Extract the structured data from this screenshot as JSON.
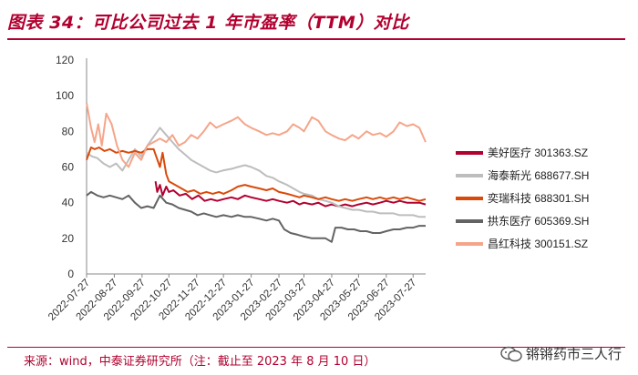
{
  "header": {
    "title": "图表 34：可比公司过去 1 年市盈率（TTM）对比"
  },
  "footer": {
    "source": "来源：wind，中泰证券研究所（注：截止至 2023 年 8 月 10 日）",
    "watermark": "锵锵药市三人行"
  },
  "colors": {
    "accent": "#b2002f"
  },
  "chart_data": {
    "type": "line",
    "title": "",
    "xlabel": "",
    "ylabel": "",
    "ylim": [
      0,
      120
    ],
    "yticks": [
      0,
      20,
      40,
      60,
      80,
      100,
      120
    ],
    "xticks": [
      "2022-07-27",
      "2022-08-27",
      "2022-09-27",
      "2022-10-27",
      "2022-11-27",
      "2022-12-27",
      "2023-01-27",
      "2023-02-27",
      "2023-03-27",
      "2023-04-27",
      "2023-05-27",
      "2023-06-27",
      "2023-07-27"
    ],
    "x_start": "2022-07-27",
    "x_end": "2023-08-10",
    "grid": false,
    "legend_position": "right",
    "series": [
      {
        "name": "美好医疗 301363.SZ",
        "color": "#b2002f",
        "points": [
          [
            "2022-10-12",
            52
          ],
          [
            "2022-10-14",
            46
          ],
          [
            "2022-10-17",
            50
          ],
          [
            "2022-10-20",
            44
          ],
          [
            "2022-10-24",
            49
          ],
          [
            "2022-10-27",
            46
          ],
          [
            "2022-11-01",
            47
          ],
          [
            "2022-11-08",
            44
          ],
          [
            "2022-11-15",
            45
          ],
          [
            "2022-11-22",
            42
          ],
          [
            "2022-11-29",
            44
          ],
          [
            "2022-12-06",
            41
          ],
          [
            "2022-12-13",
            42
          ],
          [
            "2022-12-20",
            41
          ],
          [
            "2022-12-27",
            42
          ],
          [
            "2023-01-05",
            43
          ],
          [
            "2023-01-12",
            42
          ],
          [
            "2023-01-20",
            44
          ],
          [
            "2023-01-27",
            43
          ],
          [
            "2023-02-05",
            42
          ],
          [
            "2023-02-13",
            41
          ],
          [
            "2023-02-20",
            42
          ],
          [
            "2023-02-27",
            41
          ],
          [
            "2023-03-08",
            40
          ],
          [
            "2023-03-15",
            41
          ],
          [
            "2023-03-22",
            39
          ],
          [
            "2023-03-27",
            40
          ],
          [
            "2023-04-05",
            39
          ],
          [
            "2023-04-12",
            40
          ],
          [
            "2023-04-20",
            38
          ],
          [
            "2023-04-27",
            39
          ],
          [
            "2023-05-05",
            38
          ],
          [
            "2023-05-12",
            39
          ],
          [
            "2023-05-20",
            38
          ],
          [
            "2023-05-27",
            39
          ],
          [
            "2023-06-05",
            40
          ],
          [
            "2023-06-12",
            39
          ],
          [
            "2023-06-20",
            40
          ],
          [
            "2023-06-27",
            41
          ],
          [
            "2023-07-05",
            40
          ],
          [
            "2023-07-12",
            41
          ],
          [
            "2023-07-20",
            40
          ],
          [
            "2023-07-27",
            40
          ],
          [
            "2023-08-03",
            40
          ],
          [
            "2023-08-10",
            39
          ]
        ]
      },
      {
        "name": "海泰新光 688677.SH",
        "color": "#bdbdbd",
        "points": [
          [
            "2022-07-27",
            68
          ],
          [
            "2022-08-02",
            66
          ],
          [
            "2022-08-08",
            65
          ],
          [
            "2022-08-15",
            62
          ],
          [
            "2022-08-22",
            60
          ],
          [
            "2022-08-29",
            62
          ],
          [
            "2022-09-05",
            58
          ],
          [
            "2022-09-12",
            64
          ],
          [
            "2022-09-19",
            70
          ],
          [
            "2022-09-26",
            66
          ],
          [
            "2022-10-03",
            72
          ],
          [
            "2022-10-10",
            77
          ],
          [
            "2022-10-17",
            82
          ],
          [
            "2022-10-24",
            78
          ],
          [
            "2022-10-31",
            74
          ],
          [
            "2022-11-07",
            70
          ],
          [
            "2022-11-14",
            67
          ],
          [
            "2022-11-21",
            64
          ],
          [
            "2022-11-28",
            62
          ],
          [
            "2022-12-05",
            60
          ],
          [
            "2022-12-12",
            58
          ],
          [
            "2022-12-19",
            57
          ],
          [
            "2022-12-26",
            58
          ],
          [
            "2023-01-05",
            59
          ],
          [
            "2023-01-12",
            60
          ],
          [
            "2023-01-20",
            61
          ],
          [
            "2023-01-27",
            60
          ],
          [
            "2023-02-05",
            58
          ],
          [
            "2023-02-13",
            55
          ],
          [
            "2023-02-20",
            54
          ],
          [
            "2023-02-27",
            52
          ],
          [
            "2023-03-08",
            50
          ],
          [
            "2023-03-15",
            48
          ],
          [
            "2023-03-22",
            46
          ],
          [
            "2023-03-27",
            45
          ],
          [
            "2023-04-05",
            44
          ],
          [
            "2023-04-12",
            42
          ],
          [
            "2023-04-20",
            41
          ],
          [
            "2023-04-27",
            40
          ],
          [
            "2023-05-05",
            38
          ],
          [
            "2023-05-12",
            37
          ],
          [
            "2023-05-20",
            36
          ],
          [
            "2023-05-27",
            36
          ],
          [
            "2023-06-05",
            35
          ],
          [
            "2023-06-12",
            35
          ],
          [
            "2023-06-20",
            34
          ],
          [
            "2023-06-27",
            34
          ],
          [
            "2023-07-05",
            34
          ],
          [
            "2023-07-12",
            33
          ],
          [
            "2023-07-20",
            33
          ],
          [
            "2023-07-27",
            33
          ],
          [
            "2023-08-03",
            32
          ],
          [
            "2023-08-10",
            32
          ]
        ]
      },
      {
        "name": "奕瑞科技 688301.SH",
        "color": "#d94a0a",
        "points": [
          [
            "2022-07-27",
            64
          ],
          [
            "2022-08-01",
            71
          ],
          [
            "2022-08-05",
            70
          ],
          [
            "2022-08-10",
            71
          ],
          [
            "2022-08-16",
            69
          ],
          [
            "2022-08-22",
            70
          ],
          [
            "2022-08-29",
            68
          ],
          [
            "2022-09-05",
            69
          ],
          [
            "2022-09-12",
            68
          ],
          [
            "2022-09-19",
            69
          ],
          [
            "2022-09-26",
            68
          ],
          [
            "2022-10-03",
            70
          ],
          [
            "2022-10-10",
            70
          ],
          [
            "2022-10-17",
            60
          ],
          [
            "2022-10-20",
            68
          ],
          [
            "2022-10-24",
            56
          ],
          [
            "2022-10-27",
            52
          ],
          [
            "2022-11-03",
            50
          ],
          [
            "2022-11-10",
            48
          ],
          [
            "2022-11-17",
            46
          ],
          [
            "2022-11-24",
            47
          ],
          [
            "2022-12-01",
            45
          ],
          [
            "2022-12-08",
            46
          ],
          [
            "2022-12-15",
            45
          ],
          [
            "2022-12-22",
            46
          ],
          [
            "2022-12-27",
            45
          ],
          [
            "2023-01-05",
            47
          ],
          [
            "2023-01-12",
            49
          ],
          [
            "2023-01-20",
            50
          ],
          [
            "2023-01-27",
            49
          ],
          [
            "2023-02-05",
            48
          ],
          [
            "2023-02-13",
            47
          ],
          [
            "2023-02-20",
            48
          ],
          [
            "2023-02-27",
            46
          ],
          [
            "2023-03-08",
            45
          ],
          [
            "2023-03-15",
            44
          ],
          [
            "2023-03-22",
            43
          ],
          [
            "2023-03-27",
            44
          ],
          [
            "2023-04-05",
            43
          ],
          [
            "2023-04-12",
            42
          ],
          [
            "2023-04-20",
            43
          ],
          [
            "2023-04-27",
            42
          ],
          [
            "2023-05-05",
            41
          ],
          [
            "2023-05-12",
            42
          ],
          [
            "2023-05-20",
            41
          ],
          [
            "2023-05-27",
            42
          ],
          [
            "2023-06-05",
            43
          ],
          [
            "2023-06-12",
            42
          ],
          [
            "2023-06-20",
            43
          ],
          [
            "2023-06-27",
            42
          ],
          [
            "2023-07-05",
            43
          ],
          [
            "2023-07-12",
            42
          ],
          [
            "2023-07-20",
            43
          ],
          [
            "2023-07-27",
            42
          ],
          [
            "2023-08-03",
            41
          ],
          [
            "2023-08-10",
            42
          ]
        ]
      },
      {
        "name": "拱东医疗 605369.SH",
        "color": "#636363",
        "points": [
          [
            "2022-07-27",
            44
          ],
          [
            "2022-08-01",
            46
          ],
          [
            "2022-08-08",
            44
          ],
          [
            "2022-08-15",
            43
          ],
          [
            "2022-08-22",
            44
          ],
          [
            "2022-08-29",
            43
          ],
          [
            "2022-09-05",
            42
          ],
          [
            "2022-09-12",
            44
          ],
          [
            "2022-09-19",
            40
          ],
          [
            "2022-09-26",
            37
          ],
          [
            "2022-10-03",
            38
          ],
          [
            "2022-10-10",
            37
          ],
          [
            "2022-10-17",
            44
          ],
          [
            "2022-10-24",
            40
          ],
          [
            "2022-10-31",
            39
          ],
          [
            "2022-11-07",
            37
          ],
          [
            "2022-11-14",
            36
          ],
          [
            "2022-11-21",
            35
          ],
          [
            "2022-11-28",
            33
          ],
          [
            "2022-12-05",
            34
          ],
          [
            "2022-12-12",
            33
          ],
          [
            "2022-12-19",
            32
          ],
          [
            "2022-12-27",
            33
          ],
          [
            "2023-01-05",
            32
          ],
          [
            "2023-01-12",
            33
          ],
          [
            "2023-01-20",
            32
          ],
          [
            "2023-01-27",
            32
          ],
          [
            "2023-02-05",
            31
          ],
          [
            "2023-02-13",
            30
          ],
          [
            "2023-02-20",
            31
          ],
          [
            "2023-02-27",
            30
          ],
          [
            "2023-03-05",
            25
          ],
          [
            "2023-03-12",
            23
          ],
          [
            "2023-03-20",
            22
          ],
          [
            "2023-03-27",
            21
          ],
          [
            "2023-04-05",
            20
          ],
          [
            "2023-04-12",
            20
          ],
          [
            "2023-04-20",
            20
          ],
          [
            "2023-04-27",
            18
          ],
          [
            "2023-05-01",
            26
          ],
          [
            "2023-05-08",
            26
          ],
          [
            "2023-05-15",
            25
          ],
          [
            "2023-05-22",
            25
          ],
          [
            "2023-05-29",
            24
          ],
          [
            "2023-06-05",
            24
          ],
          [
            "2023-06-12",
            23
          ],
          [
            "2023-06-20",
            23
          ],
          [
            "2023-06-27",
            24
          ],
          [
            "2023-07-05",
            25
          ],
          [
            "2023-07-12",
            25
          ],
          [
            "2023-07-20",
            26
          ],
          [
            "2023-07-27",
            26
          ],
          [
            "2023-08-03",
            27
          ],
          [
            "2023-08-10",
            27
          ]
        ]
      },
      {
        "name": "昌红科技 300151.SZ",
        "color": "#f5a58a",
        "points": [
          [
            "2022-07-27",
            96
          ],
          [
            "2022-08-01",
            82
          ],
          [
            "2022-08-05",
            74
          ],
          [
            "2022-08-09",
            84
          ],
          [
            "2022-08-13",
            72
          ],
          [
            "2022-08-18",
            90
          ],
          [
            "2022-08-24",
            84
          ],
          [
            "2022-08-30",
            72
          ],
          [
            "2022-09-05",
            64
          ],
          [
            "2022-09-12",
            60
          ],
          [
            "2022-09-19",
            68
          ],
          [
            "2022-09-26",
            64
          ],
          [
            "2022-10-03",
            72
          ],
          [
            "2022-10-10",
            74
          ],
          [
            "2022-10-17",
            76
          ],
          [
            "2022-10-24",
            74
          ],
          [
            "2022-10-31",
            78
          ],
          [
            "2022-11-07",
            72
          ],
          [
            "2022-11-14",
            74
          ],
          [
            "2022-11-21",
            78
          ],
          [
            "2022-11-28",
            76
          ],
          [
            "2022-12-05",
            80
          ],
          [
            "2022-12-12",
            85
          ],
          [
            "2022-12-19",
            82
          ],
          [
            "2022-12-27",
            84
          ],
          [
            "2023-01-05",
            86
          ],
          [
            "2023-01-12",
            88
          ],
          [
            "2023-01-20",
            84
          ],
          [
            "2023-01-27",
            82
          ],
          [
            "2023-02-05",
            80
          ],
          [
            "2023-02-13",
            78
          ],
          [
            "2023-02-20",
            79
          ],
          [
            "2023-02-27",
            78
          ],
          [
            "2023-03-08",
            80
          ],
          [
            "2023-03-15",
            84
          ],
          [
            "2023-03-22",
            82
          ],
          [
            "2023-03-27",
            80
          ],
          [
            "2023-04-05",
            88
          ],
          [
            "2023-04-12",
            86
          ],
          [
            "2023-04-20",
            80
          ],
          [
            "2023-04-27",
            78
          ],
          [
            "2023-05-05",
            76
          ],
          [
            "2023-05-12",
            75
          ],
          [
            "2023-05-20",
            78
          ],
          [
            "2023-05-27",
            76
          ],
          [
            "2023-06-05",
            80
          ],
          [
            "2023-06-12",
            78
          ],
          [
            "2023-06-20",
            79
          ],
          [
            "2023-06-27",
            77
          ],
          [
            "2023-07-05",
            80
          ],
          [
            "2023-07-12",
            85
          ],
          [
            "2023-07-20",
            83
          ],
          [
            "2023-07-27",
            84
          ],
          [
            "2023-08-03",
            82
          ],
          [
            "2023-08-10",
            74
          ]
        ]
      }
    ]
  }
}
